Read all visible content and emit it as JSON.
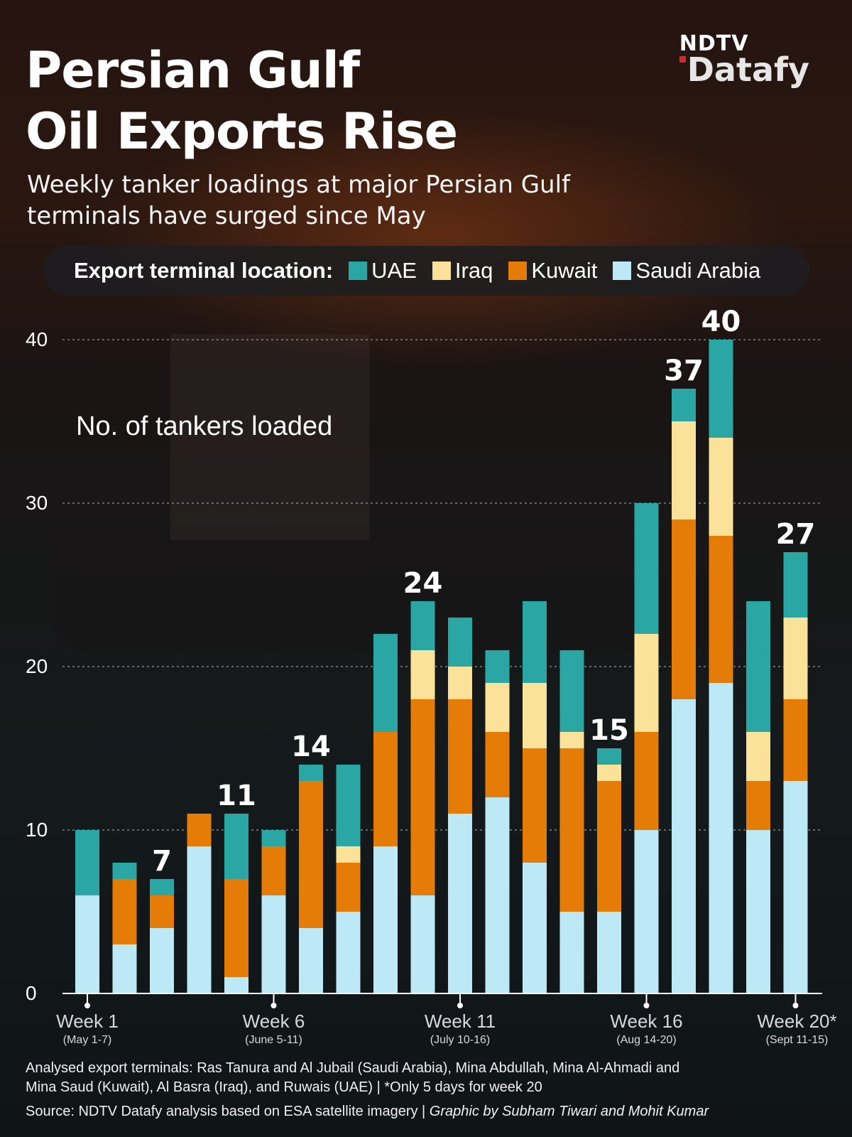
{
  "title_line1": "Persian Gulf",
  "title_line2": "Oil Exports Rise",
  "subtitle_line1": "Weekly tanker loadings at major Persian Gulf",
  "subtitle_line2": "terminals have surged since May",
  "logo": {
    "top": "NDTV",
    "bottom": "Datafy"
  },
  "legend": {
    "title": "Export terminal location:",
    "items": [
      {
        "label": "UAE",
        "color": "#2aa6a4"
      },
      {
        "label": "Iraq",
        "color": "#fbe29b"
      },
      {
        "label": "Kuwait",
        "color": "#e57c07"
      },
      {
        "label": "Saudi Arabia",
        "color": "#bde8f6"
      }
    ]
  },
  "notes": {
    "line1": "Analysed export terminals: Ras Tanura and Al Jubail (Saudi Arabia), Mina Abdullah, Mina Al-Ahmadi and",
    "line2": "Mina Saud (Kuwait), Al Basra (Iraq), and Ruwais (UAE) | *Only 5 days for week 20"
  },
  "source": {
    "text": "Source: NDTV Datafy analysis based on ESA satellite imagery | ",
    "credit": "Graphic by Subham Tiwari and Mohit Kumar"
  },
  "chart_data": {
    "type": "bar",
    "stacked": true,
    "ylabel": "No. of tankers loaded",
    "ylim": [
      0,
      40
    ],
    "yticks": [
      0,
      10,
      20,
      30,
      40
    ],
    "grid": true,
    "x": [
      1,
      2,
      3,
      4,
      5,
      6,
      7,
      8,
      9,
      10,
      11,
      12,
      13,
      14,
      15,
      16,
      17,
      18,
      19,
      20
    ],
    "xtick_labels": [
      {
        "week": 1,
        "label": "Week 1",
        "sublabel": "(May 1-7)"
      },
      {
        "week": 6,
        "label": "Week 6",
        "sublabel": "(June 5-11)"
      },
      {
        "week": 11,
        "label": "Week 11",
        "sublabel": "(July 10-16)"
      },
      {
        "week": 16,
        "label": "Week 16",
        "sublabel": "(Aug 14-20)"
      },
      {
        "week": 20,
        "label": "Week 20*",
        "sublabel": "(Sept 11-15)"
      }
    ],
    "series": [
      {
        "name": "Saudi Arabia",
        "color": "#bde8f6",
        "values": [
          6,
          3,
          4,
          9,
          1,
          6,
          4,
          5,
          9,
          6,
          11,
          12,
          8,
          5,
          5,
          10,
          18,
          19,
          10,
          13
        ]
      },
      {
        "name": "Kuwait",
        "color": "#e57c07",
        "values": [
          0,
          4,
          2,
          2,
          6,
          3,
          9,
          3,
          7,
          12,
          7,
          4,
          7,
          10,
          8,
          6,
          11,
          9,
          3,
          5
        ]
      },
      {
        "name": "Iraq",
        "color": "#fbe29b",
        "values": [
          0,
          0,
          0,
          0,
          0,
          0,
          0,
          1,
          0,
          3,
          2,
          3,
          4,
          1,
          1,
          6,
          6,
          6,
          3,
          5
        ]
      },
      {
        "name": "UAE",
        "color": "#2aa6a4",
        "values": [
          4,
          1,
          1,
          0,
          4,
          1,
          1,
          5,
          6,
          3,
          3,
          2,
          5,
          5,
          1,
          8,
          2,
          6,
          8,
          4
        ]
      }
    ],
    "total_labels": [
      {
        "week": 3,
        "value": "7"
      },
      {
        "week": 5,
        "value": "11"
      },
      {
        "week": 7,
        "value": "14"
      },
      {
        "week": 10,
        "value": "24"
      },
      {
        "week": 15,
        "value": "15"
      },
      {
        "week": 17,
        "value": "37"
      },
      {
        "week": 18,
        "value": "40"
      },
      {
        "week": 20,
        "value": "27"
      }
    ]
  }
}
